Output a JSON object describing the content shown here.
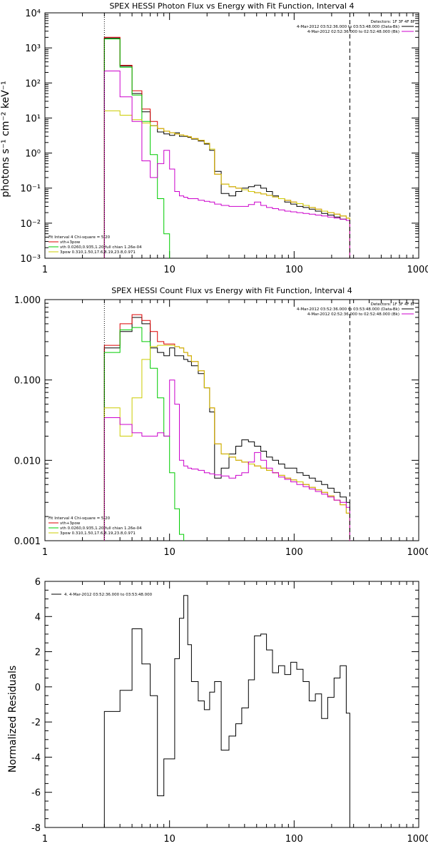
{
  "chart_data": [
    {
      "type": "line",
      "title": "SPEX HESSI Photon Flux vs Energy with Fit Function, Interval 4",
      "xlabel": "",
      "ylabel": "photons s⁻¹ cm⁻² keV⁻¹",
      "xscale": "log",
      "yscale": "log",
      "xlim": [
        1,
        1000
      ],
      "ylim": [
        0.001,
        10000
      ],
      "xtick_labels": [
        "1",
        "10",
        "100",
        "1000"
      ],
      "ytick_labels": [
        "10⁻³",
        "10⁻²",
        "10⁻¹",
        "10⁰",
        "10¹",
        "10²",
        "10³",
        "10⁴"
      ],
      "xticks": [
        1,
        10,
        100,
        1000
      ],
      "yticks": [
        0.001,
        0.01,
        0.1,
        1,
        10,
        100,
        1000,
        10000
      ],
      "vlines": [
        {
          "x": 3,
          "style": "dotted"
        },
        {
          "x": 280,
          "style": "dashed"
        }
      ],
      "legend_top_right": [
        {
          "label": "Detectors: 1F 3F 4F 8F",
          "color": "#000000"
        },
        {
          "label": "4-Mar-2012 03:52:36.000 to 03:53:48.000 (Data-Bk)",
          "color": "#000000"
        },
        {
          "label": "4-Mar-2012 02:52:36.000 to 02:52:48.000 (Bk)",
          "color": "#cc00cc"
        }
      ],
      "legend_bottom_left": [
        {
          "label": "Fit Interval 4   Chi-square = 5.20",
          "color": "#000000"
        },
        {
          "label": "vth+3pow",
          "color": "#dd0000"
        },
        {
          "label": "vth 0.0260,0.935,1.20  full chian 1.26e-04",
          "color": "#00cc00"
        },
        {
          "label": "3pow 0.310,1.50,17.6,8.19,23.8,0.971",
          "color": "#cccc00"
        }
      ],
      "series": [
        {
          "name": "data",
          "color": "#000000",
          "edges": [
            3,
            4,
            5,
            6,
            7,
            8,
            9,
            10,
            11,
            12,
            13,
            14,
            15,
            17,
            19,
            21,
            23,
            26,
            30,
            34,
            38,
            43,
            48,
            54,
            60,
            67,
            75,
            84,
            94,
            105,
            118,
            132,
            148,
            166,
            186,
            209,
            234,
            262,
            280
          ],
          "values": [
            1900,
            300,
            50,
            15,
            6,
            4,
            3.5,
            3.2,
            3.8,
            3,
            3,
            2.8,
            2.5,
            2.2,
            1.8,
            1.2,
            0.3,
            0.07,
            0.06,
            0.08,
            0.1,
            0.11,
            0.12,
            0.1,
            0.08,
            0.06,
            0.05,
            0.04,
            0.035,
            0.03,
            0.028,
            0.025,
            0.022,
            0.019,
            0.017,
            0.015,
            0.013,
            0.012
          ]
        },
        {
          "name": "vth+3pow",
          "color": "#dd0000",
          "edges": [
            3,
            4,
            5,
            6,
            7,
            8,
            9,
            10,
            11,
            12,
            13,
            14,
            15,
            17,
            19,
            21,
            23,
            26,
            30,
            34,
            38,
            43,
            48,
            54,
            60,
            67,
            75,
            84,
            94,
            105,
            118,
            132,
            148,
            166,
            186,
            209,
            234,
            262,
            280
          ],
          "values": [
            2000,
            320,
            60,
            18,
            8,
            5,
            4.2,
            3.8,
            3.5,
            3.3,
            3.1,
            2.9,
            2.6,
            2.3,
            1.9,
            1.3,
            0.25,
            0.13,
            0.11,
            0.1,
            0.09,
            0.08,
            0.074,
            0.068,
            0.062,
            0.056,
            0.05,
            0.045,
            0.04,
            0.036,
            0.032,
            0.028,
            0.025,
            0.022,
            0.02,
            0.018,
            0.016,
            0.014
          ]
        },
        {
          "name": "vth",
          "color": "#00cc00",
          "edges": [
            3,
            4,
            5,
            6,
            7,
            8,
            9,
            10
          ],
          "values": [
            1800,
            280,
            45,
            8,
            0.9,
            0.05,
            0.005,
            0.0005
          ]
        },
        {
          "name": "3pow",
          "color": "#cccc00",
          "edges": [
            3,
            4,
            5,
            6,
            7,
            8,
            9,
            10,
            11,
            12,
            13,
            14,
            15,
            17,
            19,
            21,
            23,
            26,
            30,
            34,
            38,
            43,
            48,
            54,
            60,
            67,
            75,
            84,
            94,
            105,
            118,
            132,
            148,
            166,
            186,
            209,
            234,
            262,
            280
          ],
          "values": [
            16,
            12,
            9,
            7.2,
            6,
            5,
            4.2,
            3.8,
            3.5,
            3.3,
            3.1,
            2.9,
            2.6,
            2.3,
            1.9,
            1.3,
            0.25,
            0.13,
            0.11,
            0.1,
            0.09,
            0.08,
            0.074,
            0.068,
            0.062,
            0.056,
            0.05,
            0.045,
            0.04,
            0.036,
            0.032,
            0.028,
            0.025,
            0.022,
            0.02,
            0.018,
            0.016,
            0.014
          ]
        },
        {
          "name": "background",
          "color": "#cc00cc",
          "edges": [
            3,
            4,
            5,
            6,
            7,
            8,
            9,
            10,
            11,
            12,
            13,
            14,
            15,
            17,
            19,
            21,
            23,
            26,
            30,
            34,
            38,
            43,
            48,
            54,
            60,
            67,
            75,
            84,
            94,
            105,
            118,
            132,
            148,
            166,
            186,
            209,
            234,
            262,
            280
          ],
          "values": [
            220,
            40,
            8,
            0.6,
            0.2,
            0.5,
            1.2,
            0.35,
            0.08,
            0.06,
            0.055,
            0.05,
            0.05,
            0.045,
            0.042,
            0.04,
            0.035,
            0.032,
            0.03,
            0.03,
            0.03,
            0.034,
            0.04,
            0.032,
            0.028,
            0.026,
            0.024,
            0.022,
            0.021,
            0.02,
            0.019,
            0.018,
            0.017,
            0.016,
            0.015,
            0.014,
            0.013,
            0.012
          ]
        }
      ]
    },
    {
      "type": "line",
      "title": "SPEX HESSI Count Flux vs Energy with Fit Function, Interval 4",
      "xlabel": "",
      "ylabel": "",
      "xscale": "log",
      "yscale": "log",
      "xlim": [
        1,
        1000
      ],
      "ylim": [
        0.001,
        1.0
      ],
      "xtick_labels": [
        "1",
        "10",
        "100",
        "1000"
      ],
      "ytick_labels": [
        "0.001",
        "0.010",
        "0.100",
        "1.000"
      ],
      "xticks": [
        1,
        10,
        100,
        1000
      ],
      "yticks": [
        0.001,
        0.01,
        0.1,
        1.0
      ],
      "vlines": [
        {
          "x": 3,
          "style": "dotted"
        },
        {
          "x": 280,
          "style": "dashed"
        }
      ],
      "legend_top_right": [
        {
          "label": "Detectors: 1F 3F 4F 8F",
          "color": "#000000"
        },
        {
          "label": "4-Mar-2012 03:52:36.000 to 03:53:48.000 (Data-Bk)",
          "color": "#000000"
        },
        {
          "label": "4-Mar-2012 02:52:36.000 to 02:52:48.000 (Bk)",
          "color": "#cc00cc"
        }
      ],
      "legend_bottom_left": [
        {
          "label": "Fit Interval 4   Chi-square = 5.20",
          "color": "#000000"
        },
        {
          "label": "vth+3pow",
          "color": "#dd0000"
        },
        {
          "label": "vth 0.0260,0.935,1.20  full chian 1.26e-04",
          "color": "#00cc00"
        },
        {
          "label": "3pow 0.310,1.50,17.6,8.19,23.8,0.971",
          "color": "#cccc00"
        }
      ],
      "series": [
        {
          "name": "data",
          "color": "#000000",
          "edges": [
            3,
            4,
            5,
            6,
            7,
            8,
            9,
            10,
            11,
            12,
            13,
            14,
            15,
            17,
            19,
            21,
            23,
            26,
            30,
            34,
            38,
            43,
            48,
            54,
            60,
            67,
            75,
            84,
            94,
            105,
            118,
            132,
            148,
            166,
            186,
            209,
            234,
            262,
            280
          ],
          "values": [
            0.25,
            0.4,
            0.6,
            0.5,
            0.25,
            0.22,
            0.2,
            0.25,
            0.2,
            0.2,
            0.18,
            0.17,
            0.15,
            0.12,
            0.08,
            0.04,
            0.006,
            0.008,
            0.012,
            0.015,
            0.018,
            0.017,
            0.015,
            0.013,
            0.011,
            0.01,
            0.009,
            0.008,
            0.008,
            0.007,
            0.0065,
            0.006,
            0.0055,
            0.005,
            0.0045,
            0.004,
            0.0035,
            0.003
          ]
        },
        {
          "name": "vth+3pow",
          "color": "#dd0000",
          "edges": [
            3,
            4,
            5,
            6,
            7,
            8,
            9,
            10,
            11,
            12,
            13,
            14,
            15,
            17,
            19,
            21,
            23,
            26,
            30,
            34,
            38,
            43,
            48,
            54,
            60,
            67,
            75,
            84,
            94,
            105,
            118,
            132,
            148,
            166,
            186,
            209,
            234,
            262,
            280
          ],
          "values": [
            0.27,
            0.5,
            0.65,
            0.55,
            0.4,
            0.3,
            0.28,
            0.28,
            0.26,
            0.25,
            0.22,
            0.2,
            0.17,
            0.13,
            0.08,
            0.045,
            0.016,
            0.012,
            0.011,
            0.01,
            0.0095,
            0.009,
            0.0085,
            0.008,
            0.0075,
            0.007,
            0.0065,
            0.006,
            0.0057,
            0.0054,
            0.005,
            0.0046,
            0.0043,
            0.004,
            0.0036,
            0.0032,
            0.0028,
            0.0022
          ]
        },
        {
          "name": "vth",
          "color": "#00cc00",
          "edges": [
            3,
            4,
            5,
            6,
            7,
            8,
            9,
            10,
            11,
            12,
            13
          ],
          "values": [
            0.22,
            0.42,
            0.45,
            0.3,
            0.14,
            0.06,
            0.02,
            0.007,
            0.0025,
            0.0012,
            0.0005
          ]
        },
        {
          "name": "3pow",
          "color": "#cccc00",
          "edges": [
            3,
            4,
            5,
            6,
            7,
            8,
            9,
            10,
            11,
            12,
            13,
            14,
            15,
            17,
            19,
            21,
            23,
            26,
            30,
            34,
            38,
            43,
            48,
            54,
            60,
            67,
            75,
            84,
            94,
            105,
            118,
            132,
            148,
            166,
            186,
            209,
            234,
            262,
            280
          ],
          "values": [
            0.045,
            0.02,
            0.06,
            0.18,
            0.26,
            0.27,
            0.27,
            0.27,
            0.26,
            0.25,
            0.22,
            0.2,
            0.17,
            0.13,
            0.08,
            0.045,
            0.016,
            0.012,
            0.011,
            0.01,
            0.0095,
            0.009,
            0.0085,
            0.008,
            0.0075,
            0.007,
            0.0065,
            0.006,
            0.0057,
            0.0054,
            0.005,
            0.0046,
            0.0043,
            0.004,
            0.0036,
            0.0032,
            0.0028,
            0.0022
          ]
        },
        {
          "name": "background",
          "color": "#cc00cc",
          "edges": [
            3,
            4,
            5,
            6,
            7,
            8,
            9,
            10,
            11,
            12,
            13,
            14,
            15,
            17,
            19,
            21,
            23,
            26,
            30,
            34,
            38,
            43,
            48,
            54,
            60,
            67,
            75,
            84,
            94,
            105,
            118,
            132,
            148,
            166,
            186,
            209,
            234,
            262,
            280
          ],
          "values": [
            0.034,
            0.028,
            0.022,
            0.02,
            0.02,
            0.022,
            0.02,
            0.1,
            0.05,
            0.01,
            0.0085,
            0.008,
            0.0078,
            0.0075,
            0.007,
            0.0068,
            0.0066,
            0.0064,
            0.006,
            0.0065,
            0.007,
            0.0095,
            0.0125,
            0.01,
            0.008,
            0.007,
            0.0062,
            0.0058,
            0.0054,
            0.005,
            0.0047,
            0.0044,
            0.0041,
            0.0038,
            0.0035,
            0.0032,
            0.003,
            0.0026
          ]
        }
      ]
    },
    {
      "type": "line",
      "title": "",
      "xlabel": "",
      "ylabel": "Normalized Residuals",
      "xscale": "log",
      "yscale": "linear",
      "xlim": [
        1,
        1000
      ],
      "ylim": [
        -8,
        6
      ],
      "xtick_labels": [
        "1",
        "10",
        "100",
        "1000"
      ],
      "ytick_labels": [
        "-8",
        "-6",
        "-4",
        "-2",
        "0",
        "2",
        "4",
        "6"
      ],
      "xticks": [
        1,
        10,
        100,
        1000
      ],
      "yticks": [
        -8,
        -6,
        -4,
        -2,
        0,
        2,
        4,
        6
      ],
      "vlines": [],
      "legend_top_left": [
        {
          "label": "4.  4-Mar-2012 03:52:36.000 to 03:53:48.000",
          "color": "#000000"
        }
      ],
      "series": [
        {
          "name": "residuals",
          "color": "#000000",
          "edges": [
            3,
            4,
            5,
            6,
            7,
            8,
            9,
            10,
            11,
            12,
            13,
            14,
            15,
            17,
            19,
            21,
            23,
            26,
            30,
            34,
            38,
            43,
            48,
            54,
            60,
            67,
            75,
            84,
            94,
            105,
            118,
            132,
            148,
            166,
            186,
            209,
            234,
            262,
            280
          ],
          "values": [
            -1.4,
            -0.2,
            3.3,
            1.3,
            -0.5,
            -6.2,
            -4.1,
            -4.1,
            1.6,
            3.9,
            5.2,
            2.4,
            0.3,
            -0.8,
            -1.3,
            -0.3,
            0.3,
            -3.6,
            -2.8,
            -2.1,
            -1.2,
            0.4,
            2.9,
            3.0,
            2.1,
            0.8,
            1.2,
            0.7,
            1.4,
            1.0,
            0.3,
            -0.8,
            -0.4,
            -1.8,
            -0.6,
            0.5,
            1.2,
            -1.5
          ]
        }
      ]
    }
  ]
}
